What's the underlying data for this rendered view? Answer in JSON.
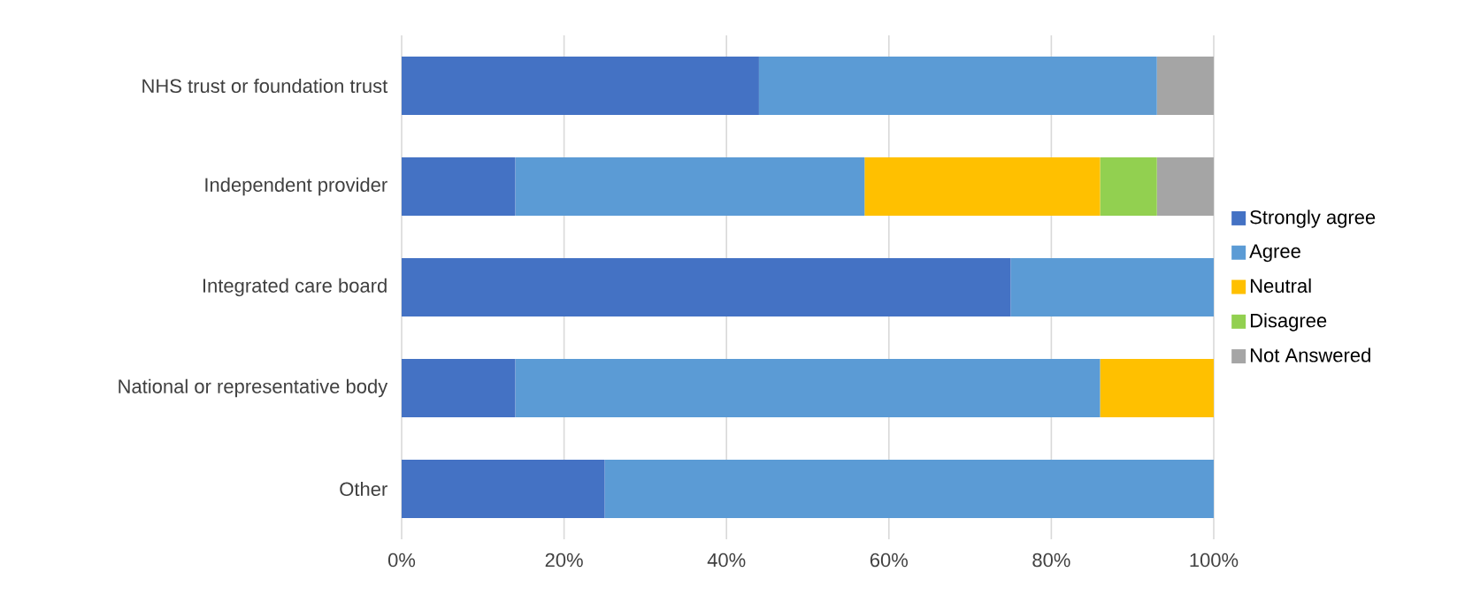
{
  "chart_data": {
    "type": "bar",
    "orientation": "horizontal",
    "stacked": true,
    "categories": [
      "NHS trust or foundation trust",
      "Independent provider",
      "Integrated care board",
      "National or representative body",
      "Other"
    ],
    "series": [
      {
        "name": "Strongly agree",
        "color": "#4472c4",
        "values": [
          44,
          14,
          75,
          14,
          25
        ]
      },
      {
        "name": "Agree",
        "color": "#5b9bd5",
        "values": [
          49,
          43,
          25,
          72,
          75
        ]
      },
      {
        "name": "Neutral",
        "color": "#ffc000",
        "values": [
          null,
          29,
          null,
          14,
          null
        ]
      },
      {
        "name": "Disagree",
        "color": "#92d050",
        "values": [
          null,
          7,
          null,
          null,
          null
        ]
      },
      {
        "name": "Not Answered",
        "color": "#a5a5a5",
        "values": [
          7,
          7,
          null,
          null,
          null
        ]
      }
    ],
    "xlim": [
      0,
      100
    ],
    "xticks": [
      {
        "value": 0,
        "label": "0%"
      },
      {
        "value": 20,
        "label": "20%"
      },
      {
        "value": 40,
        "label": "40%"
      },
      {
        "value": 60,
        "label": "60%"
      },
      {
        "value": 80,
        "label": "80%"
      },
      {
        "value": 100,
        "label": "100%"
      }
    ],
    "grid": "x",
    "legend": "right"
  }
}
